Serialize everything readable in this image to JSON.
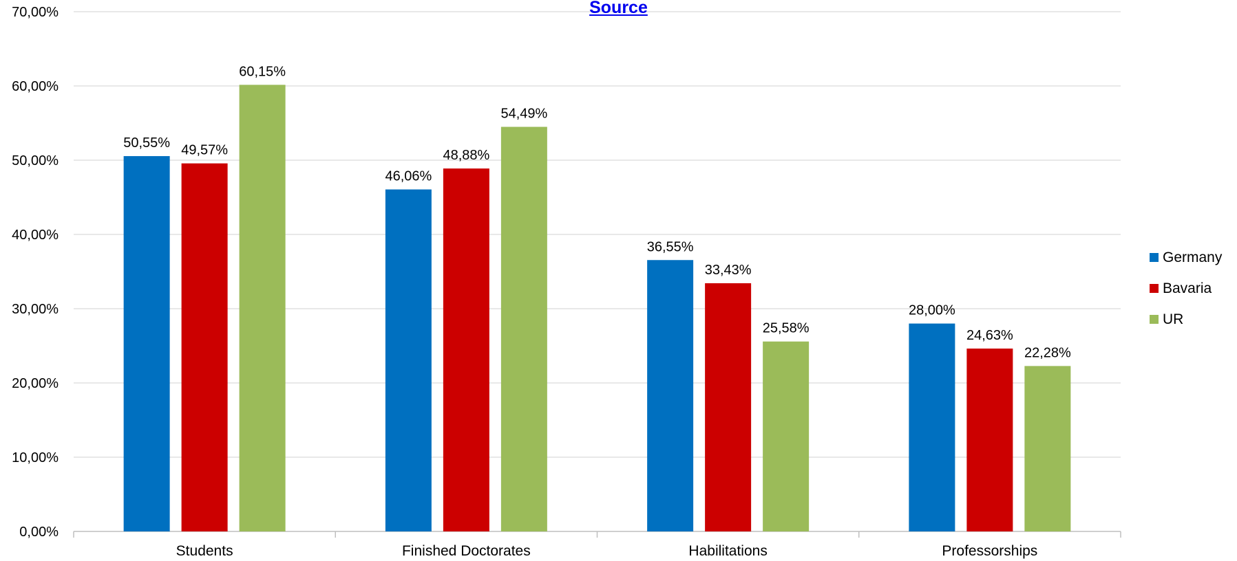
{
  "source_link": {
    "label": "Source"
  },
  "colors": {
    "Germany": "#0070c0",
    "Bavaria": "#cc0000",
    "UR": "#9bbb59",
    "grid": "#d9d9d9",
    "axis": "#bfbfbf",
    "text": "#000000"
  },
  "chart_data": {
    "type": "bar",
    "categories": [
      "Students",
      "Finished Doctorates",
      "Habilitations",
      "Professorships"
    ],
    "series": [
      {
        "name": "Germany",
        "values": [
          50.55,
          46.06,
          36.55,
          28.0
        ],
        "labels": [
          "50,55%",
          "46,06%",
          "36,55%",
          "28,00%"
        ]
      },
      {
        "name": "Bavaria",
        "values": [
          49.57,
          48.88,
          33.43,
          24.63
        ],
        "labels": [
          "49,57%",
          "48,88%",
          "33,43%",
          "24,63%"
        ]
      },
      {
        "name": "UR",
        "values": [
          60.15,
          54.49,
          25.58,
          22.28
        ],
        "labels": [
          "60,15%",
          "54,49%",
          "25,58%",
          "22,28%"
        ]
      }
    ],
    "ylim": [
      0,
      70
    ],
    "yticks": [
      0,
      10,
      20,
      30,
      40,
      50,
      60,
      70
    ],
    "ytick_labels": [
      "0,00%",
      "10,00%",
      "20,00%",
      "30,00%",
      "40,00%",
      "50,00%",
      "60,00%",
      "70,00%"
    ],
    "grid": true,
    "legend_position": "right",
    "title": "",
    "xlabel": "",
    "ylabel": ""
  }
}
